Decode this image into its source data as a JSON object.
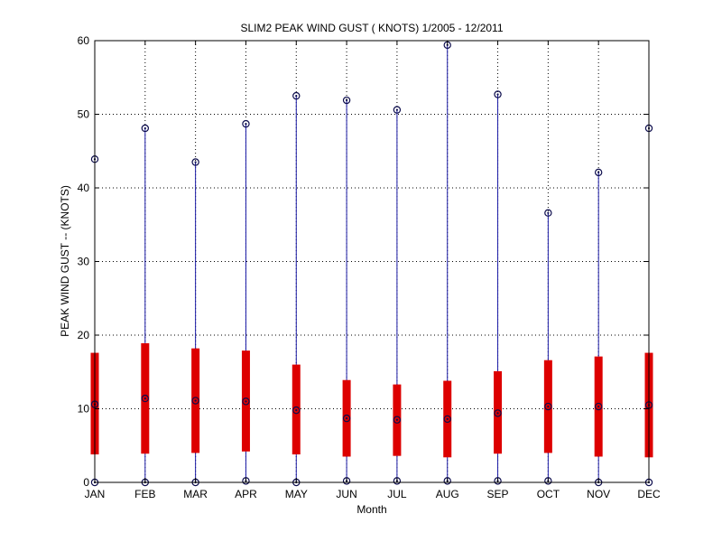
{
  "chart_data": {
    "type": "box",
    "title": "SLIM2  PEAK WIND GUST ( KNOTS) 1/2005 - 12/2011",
    "xlabel": "Month",
    "ylabel": "PEAK WIND GUST -- (KNOTS)",
    "ylim": [
      0,
      60
    ],
    "yticks": [
      "0",
      "10",
      "20",
      "30",
      "40",
      "50",
      "60"
    ],
    "grid": true,
    "categories": [
      "JAN",
      "FEB",
      "MAR",
      "APR",
      "MAY",
      "JUN",
      "JUL",
      "AUG",
      "SEP",
      "OCT",
      "NOV",
      "DEC"
    ],
    "series": [
      {
        "min": [
          0,
          0,
          0,
          0.2,
          0,
          0.2,
          0.2,
          0.2,
          0.2,
          0.2,
          0,
          0
        ],
        "q1": [
          3.8,
          3.9,
          4.0,
          4.2,
          3.8,
          3.5,
          3.6,
          3.4,
          3.9,
          4.0,
          3.5,
          3.4
        ],
        "median": [
          10.6,
          11.4,
          11.1,
          11.0,
          9.8,
          8.7,
          8.5,
          8.6,
          9.4,
          10.3,
          10.3,
          10.5
        ],
        "q3": [
          17.6,
          18.9,
          18.2,
          17.9,
          16.0,
          13.9,
          13.3,
          13.8,
          15.1,
          16.6,
          17.1,
          17.6
        ],
        "max": [
          43.9,
          48.1,
          43.5,
          48.7,
          52.5,
          51.9,
          50.6,
          59.4,
          52.7,
          36.6,
          42.1,
          48.1
        ]
      }
    ],
    "colors": {
      "whisker": "#1a1aa6",
      "box": "#dd0000",
      "marker": "#0d0d4d"
    }
  }
}
